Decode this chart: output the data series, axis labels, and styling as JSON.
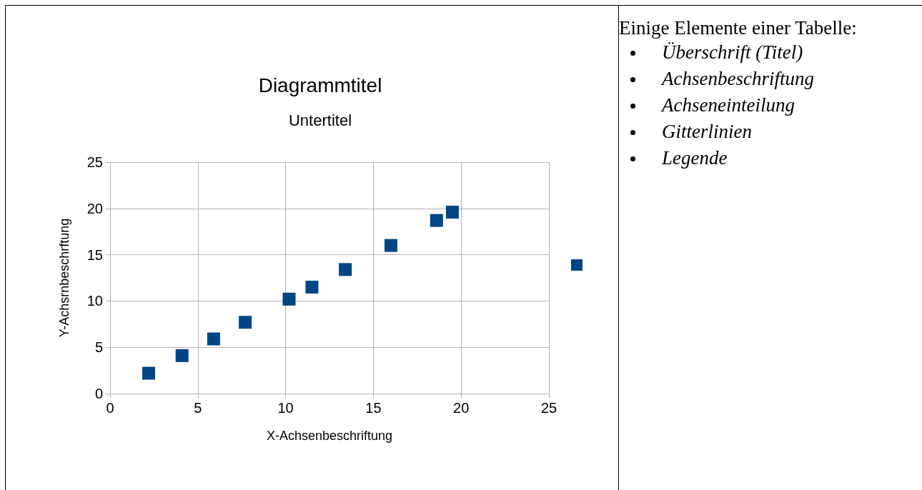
{
  "chart_data": [
    {
      "type": "scatter",
      "title": "Diagrammtitel",
      "subtitle": "Untertitel",
      "xlabel": "X-Achsenbeschriftung",
      "ylabel": "Y-Achsrnbeschrftung",
      "x": [
        2.2,
        4.1,
        5.9,
        7.7,
        10.2,
        11.5,
        13.4,
        16.0,
        18.6,
        19.5
      ],
      "series": [
        {
          "color": "#004586",
          "values": [
            2.2,
            4.1,
            5.9,
            7.7,
            10.2,
            11.5,
            13.4,
            16.0,
            18.7,
            19.6
          ]
        }
      ],
      "xlim": [
        0,
        25
      ],
      "xticks": [
        0,
        5,
        10,
        15,
        20,
        25
      ],
      "ylim": [
        0,
        25
      ],
      "yticks": [
        0,
        5,
        10,
        15,
        20,
        25
      ],
      "grid": true,
      "marker": "square"
    },
    {
      "type": "other",
      "title": "Einige Elemente einer Tabelle:",
      "annotations": [
        "Überschrift (Titel)",
        "Achsenbeschriftung",
        "Achseneinteilung",
        "Gitterlinien",
        "Legende"
      ]
    }
  ]
}
